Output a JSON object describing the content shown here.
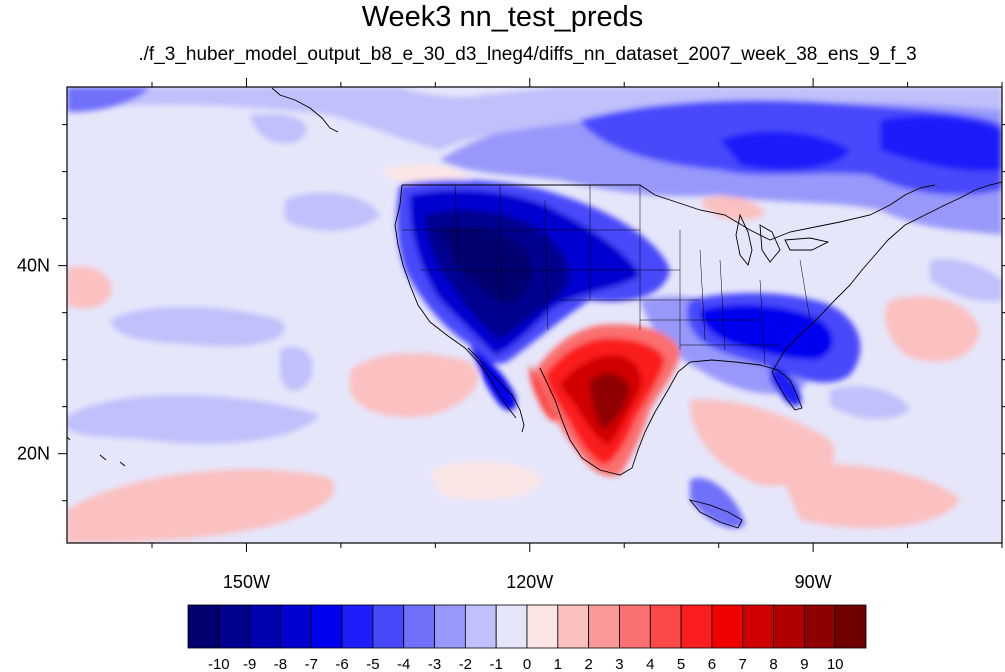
{
  "title": "Week3 nn_test_preds",
  "subtitle": "./f_3_huber_model_output_b8_e_30_d3_lneg4/diffs_nn_dataset_2007_week_38_ens_9_f_3",
  "map": {
    "lon_range": [
      -169,
      -70
    ],
    "lat_range": [
      10.5,
      59
    ],
    "x_ticks": [
      {
        "lon": -150,
        "label": "150W"
      },
      {
        "lon": -120,
        "label": "120W"
      },
      {
        "lon": -90,
        "label": "90W"
      }
    ],
    "y_ticks": [
      {
        "lat": 20,
        "label": "20N"
      },
      {
        "lat": 40,
        "label": "40N"
      }
    ]
  },
  "colorbar": {
    "labels": [
      "-10",
      "-9",
      "-8",
      "-7",
      "-6",
      "-5",
      "-4",
      "-3",
      "-2",
      "-1",
      "0",
      "1",
      "2",
      "3",
      "4",
      "5",
      "6",
      "7",
      "8",
      "9",
      "10"
    ],
    "colors": [
      "#000070",
      "#00008f",
      "#0000b0",
      "#0000d0",
      "#0000f0",
      "#1e1efb",
      "#4848fb",
      "#7070fb",
      "#9898fb",
      "#c0c0fb",
      "#e6e6fb",
      "#fbe6e6",
      "#fbc0c0",
      "#fb9898",
      "#fb7070",
      "#fb4848",
      "#fb1e1e",
      "#f00000",
      "#d00000",
      "#b00000",
      "#8f0000",
      "#700000"
    ]
  }
}
